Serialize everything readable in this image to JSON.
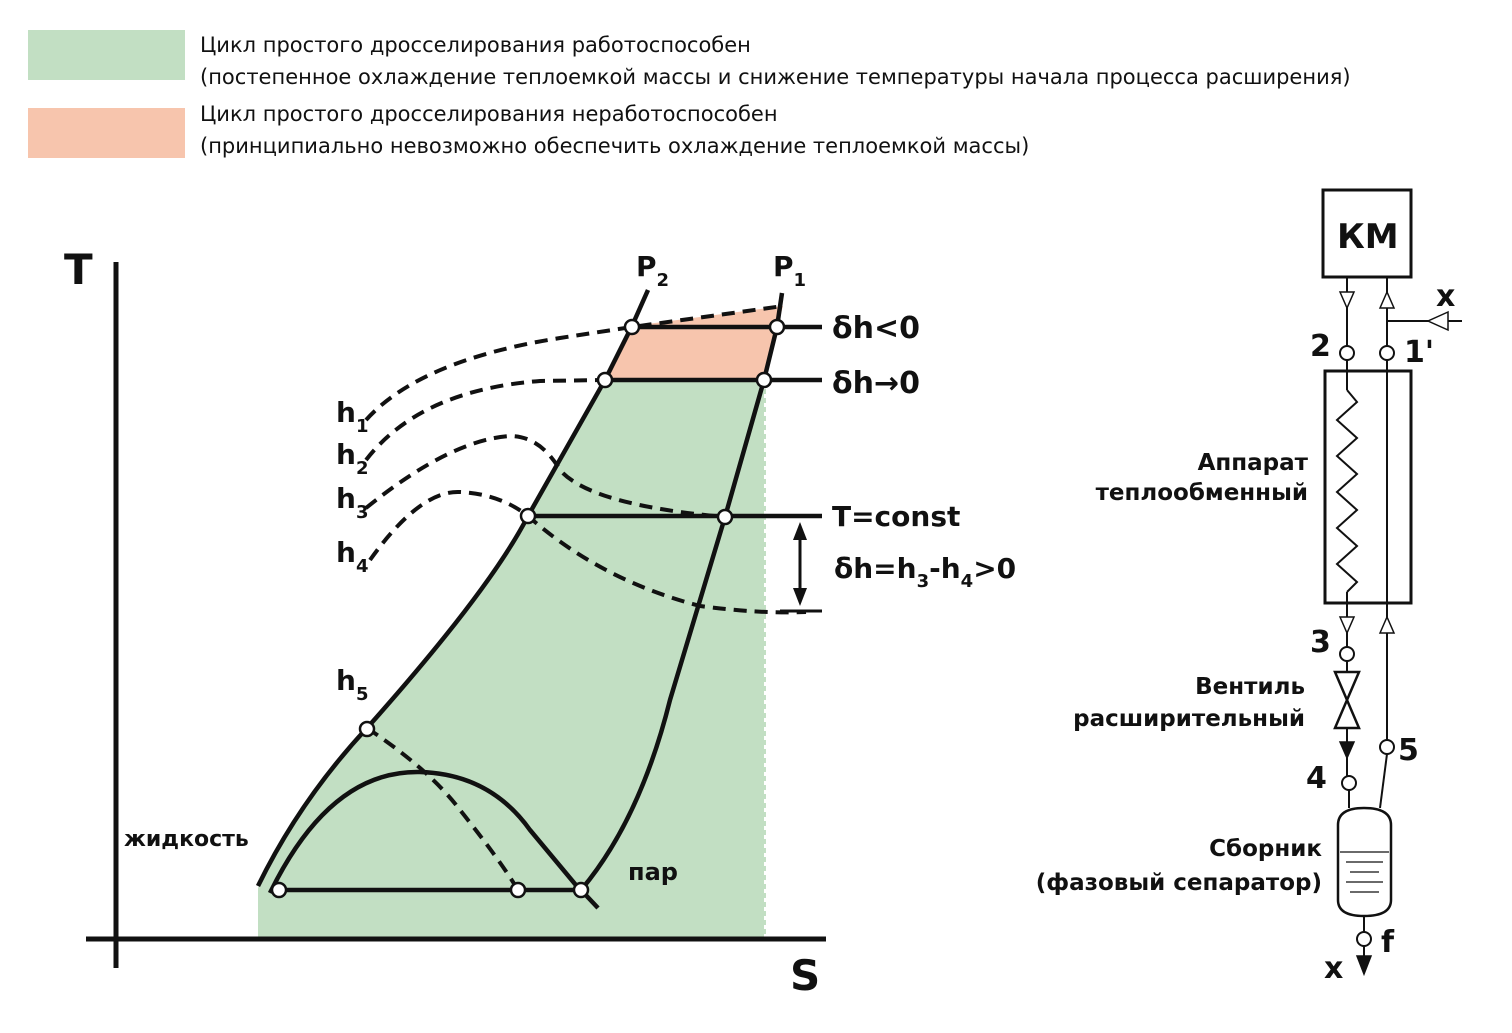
{
  "legend": {
    "working": {
      "color": "#c2dfc3",
      "line1": "Цикл простого дросселирования работоспособен",
      "line2": "(постепенное охлаждение теплоемкой массы и снижение температуры начала процесса расширения)"
    },
    "not_working": {
      "color": "#f7c5ad",
      "line1": "Цикл простого дросселирования неработоспособен",
      "line2": "(принципиально невозможно обеспечить охлаждение теплоемкой массы)"
    }
  },
  "ts_diagram": {
    "axis_t": "T",
    "axis_s": "S",
    "p2": {
      "base": "P",
      "sub": "2"
    },
    "p1": {
      "base": "P",
      "sub": "1"
    },
    "h1": {
      "base": "h",
      "sub": "1"
    },
    "h2": {
      "base": "h",
      "sub": "2"
    },
    "h3": {
      "base": "h",
      "sub": "3"
    },
    "h4": {
      "base": "h",
      "sub": "4"
    },
    "h5": {
      "base": "h",
      "sub": "5"
    },
    "dh_neg": "δh<0",
    "dh_zero": "δh→0",
    "t_const": "T=const",
    "dh_pos": {
      "a": "δh=h",
      "s1": "3",
      "b": "-h",
      "s2": "4",
      "c": ">0"
    },
    "liquid": "жидкость",
    "vapor": "пар"
  },
  "schematic": {
    "compressor": "КМ",
    "hx_line1": "Аппарат",
    "hx_line2": "теплообменный",
    "valve_line1": "Вентиль",
    "valve_line2": "расширительный",
    "sep_line1": "Сборник",
    "sep_line2": "(фазовый сепаратор)",
    "x_in": "x",
    "x_out": "x",
    "n1": "1'",
    "n2": "2",
    "n3": "3",
    "n4": "4",
    "n5": "5",
    "nf": "f"
  }
}
